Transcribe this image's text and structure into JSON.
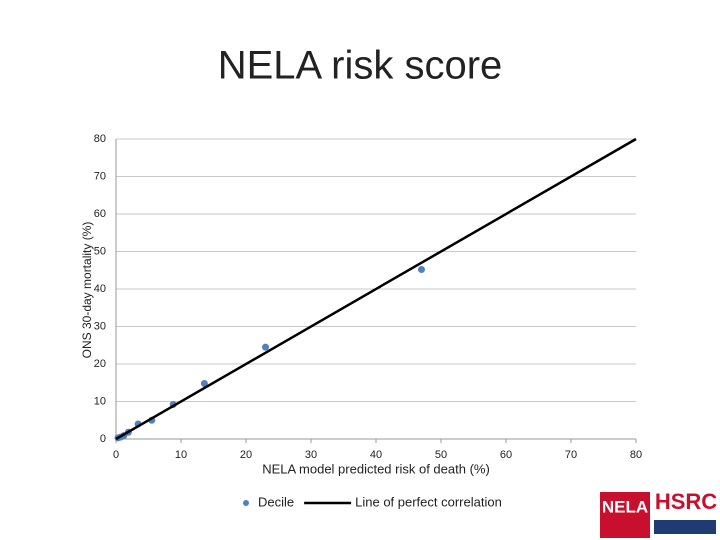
{
  "chart_data": {
    "type": "scatter",
    "title": "NELA risk score",
    "x_label": "NELA model predicted risk of death (%)",
    "y_label": "ONS 30-day mortality (%)",
    "series": [
      {
        "name": "Decile",
        "type": "scatter",
        "color": "#4f81bd",
        "x": [
          0.3,
          0.7,
          1.2,
          1.9,
          3.4,
          5.5,
          8.8,
          13.6,
          23,
          47
        ],
        "values": [
          0.3,
          0.5,
          0.9,
          1.8,
          4.0,
          5.0,
          9.2,
          14.8,
          24.5,
          45.2
        ]
      },
      {
        "name": "Line of perfect correlation",
        "type": "line",
        "color": "#000000",
        "x": [
          0,
          80
        ],
        "values": [
          0,
          80
        ]
      }
    ],
    "xlim": [
      0,
      80
    ],
    "xticks": [
      0,
      10,
      20,
      30,
      40,
      50,
      60,
      70,
      80
    ],
    "ylim": [
      0,
      80
    ],
    "yticks": [
      0,
      10,
      20,
      30,
      40,
      50,
      60,
      70,
      80
    ],
    "grid": true
  },
  "logos": {
    "left": "NELA",
    "right": "HSRC"
  }
}
